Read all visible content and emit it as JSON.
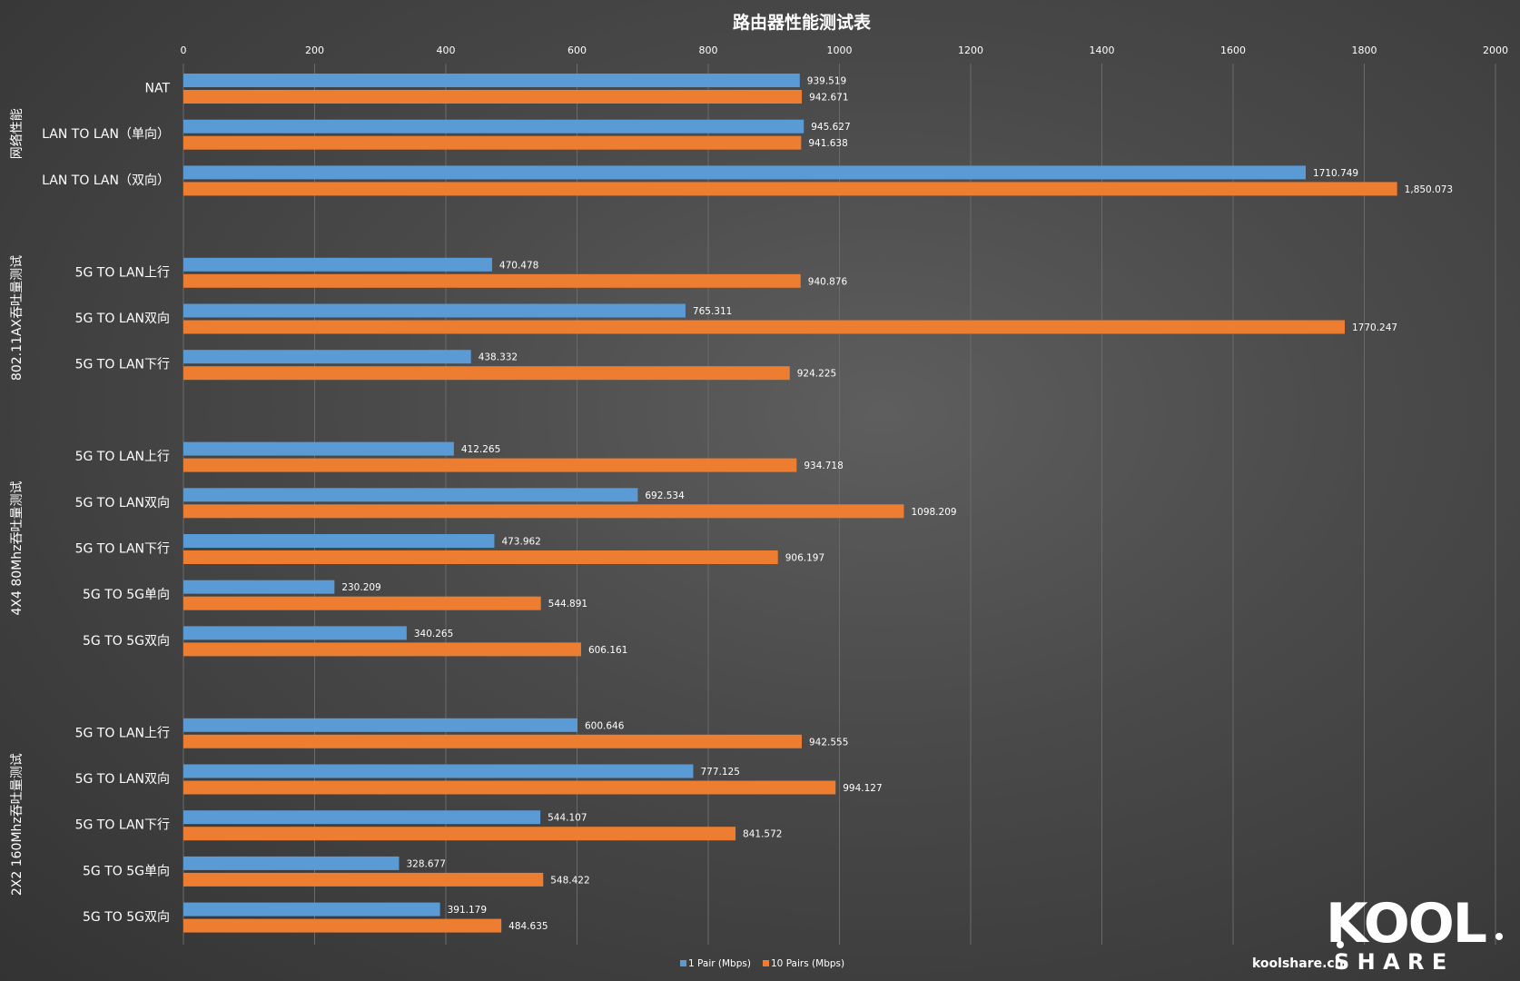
{
  "chart_data": {
    "type": "bar",
    "orientation": "horizontal",
    "title": "路由器性能测试表",
    "xlim": [
      0,
      2000
    ],
    "xticks": [
      0,
      200,
      400,
      600,
      800,
      1000,
      1200,
      1400,
      1600,
      1800,
      2000
    ],
    "xaxis_position": "top",
    "grid": true,
    "legend_position": "bottom-center",
    "series": [
      {
        "name": "1 Pair  (Mbps)",
        "color": "#5b9bd5"
      },
      {
        "name": "10  Pairs  (Mbps)",
        "color": "#ed7d31"
      }
    ],
    "groups": [
      {
        "label": "网络性能",
        "categories": [
          {
            "label": "NAT",
            "values": [
              939.519,
              942.671
            ],
            "value_labels": [
              "939.519",
              "942.671"
            ]
          },
          {
            "label": "LAN TO LAN（单向）",
            "values": [
              945.627,
              941.638
            ],
            "value_labels": [
              "945.627",
              "941.638"
            ]
          },
          {
            "label": "LAN TO LAN（双向）",
            "values": [
              1710.749,
              1850.073
            ],
            "value_labels": [
              "1710.749",
              "1,850.073"
            ]
          }
        ]
      },
      {
        "label": "802.11AX吞吐量测试",
        "categories": [
          {
            "label": "5G TO LAN上行",
            "values": [
              470.478,
              940.876
            ],
            "value_labels": [
              "470.478",
              "940.876"
            ]
          },
          {
            "label": "5G TO LAN双向",
            "values": [
              765.311,
              1770.247
            ],
            "value_labels": [
              "765.311",
              "1770.247"
            ]
          },
          {
            "label": "5G TO LAN下行",
            "values": [
              438.332,
              924.225
            ],
            "value_labels": [
              "438.332",
              "924.225"
            ]
          }
        ]
      },
      {
        "label": "4X4 80Mhz吞吐量测试",
        "categories": [
          {
            "label": "5G TO LAN上行",
            "values": [
              412.265,
              934.718
            ],
            "value_labels": [
              "412.265",
              "934.718"
            ]
          },
          {
            "label": "5G TO LAN双向",
            "values": [
              692.534,
              1098.209
            ],
            "value_labels": [
              "692.534",
              "1098.209"
            ]
          },
          {
            "label": "5G TO LAN下行",
            "values": [
              473.962,
              906.197
            ],
            "value_labels": [
              "473.962",
              "906.197"
            ]
          },
          {
            "label": "5G TO 5G单向",
            "values": [
              230.209,
              544.891
            ],
            "value_labels": [
              "230.209",
              "544.891"
            ]
          },
          {
            "label": "5G TO 5G双向",
            "values": [
              340.265,
              606.161
            ],
            "value_labels": [
              "340.265",
              "606.161"
            ]
          }
        ]
      },
      {
        "label": "2X2 160Mhz吞吐量测试",
        "categories": [
          {
            "label": "5G TO LAN上行",
            "values": [
              600.646,
              942.555
            ],
            "value_labels": [
              "600.646",
              "942.555"
            ]
          },
          {
            "label": "5G TO LAN双向",
            "values": [
              777.125,
              994.127
            ],
            "value_labels": [
              "777.125",
              "994.127"
            ]
          },
          {
            "label": "5G TO LAN下行",
            "values": [
              544.107,
              841.572
            ],
            "value_labels": [
              "544.107",
              "841.572"
            ]
          },
          {
            "label": "5G TO 5G单向",
            "values": [
              328.677,
              548.422
            ],
            "value_labels": [
              "328.677",
              "548.422"
            ]
          },
          {
            "label": "5G TO 5G双向",
            "values": [
              391.179,
              484.635
            ],
            "value_labels": [
              "391.179",
              "484.635"
            ]
          }
        ]
      }
    ]
  },
  "watermark": {
    "site": "koolshare.cn",
    "logo_top": "KOOL",
    "logo_bottom": "S H A R E"
  }
}
